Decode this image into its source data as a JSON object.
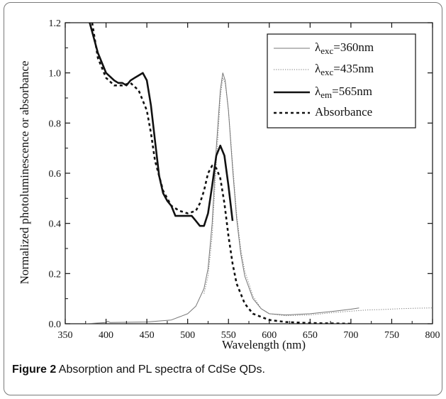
{
  "caption": {
    "label": "Figure 2",
    "text": "Absorption and PL spectra of CdSe QDs."
  },
  "chart_data": {
    "type": "line",
    "xlabel": "Wavelength (nm)",
    "ylabel": "Normalized photoluminescence or absorbance",
    "xlim": [
      350,
      800
    ],
    "ylim": [
      0,
      1.2
    ],
    "xticks": [
      350,
      400,
      450,
      500,
      550,
      600,
      650,
      700,
      750,
      800
    ],
    "yticks": [
      0.0,
      0.2,
      0.4,
      0.6,
      0.8,
      1.0,
      1.2
    ],
    "legend_position": "top-right",
    "series": [
      {
        "name": "λexc=360nm",
        "legend": {
          "symbol": "λ",
          "sub": "exc",
          "rest": "=360nm"
        },
        "style": "thin-solid",
        "color": "#777777",
        "x": [
          375,
          400,
          402,
          405,
          450,
          480,
          500,
          510,
          520,
          525,
          530,
          535,
          540,
          543,
          546,
          550,
          555,
          560,
          565,
          570,
          580,
          590,
          600,
          620,
          650,
          680,
          700,
          710
        ],
        "y": [
          0.0,
          0.005,
          0.01,
          0.005,
          0.007,
          0.015,
          0.04,
          0.07,
          0.14,
          0.22,
          0.4,
          0.7,
          0.93,
          1.0,
          0.97,
          0.85,
          0.62,
          0.42,
          0.28,
          0.19,
          0.1,
          0.06,
          0.04,
          0.035,
          0.04,
          0.05,
          0.058,
          0.063
        ]
      },
      {
        "name": "λexc=435nm",
        "legend": {
          "symbol": "λ",
          "sub": "exc",
          "rest": "=435nm"
        },
        "style": "dotted",
        "color": "#777777",
        "x": [
          520,
          525,
          530,
          535,
          540,
          543,
          546,
          550,
          555,
          560,
          565,
          570,
          580,
          590,
          600,
          620,
          650,
          680,
          700,
          720,
          740,
          760,
          780,
          800
        ],
        "y": [
          0.12,
          0.19,
          0.35,
          0.64,
          0.9,
          0.98,
          0.96,
          0.85,
          0.64,
          0.44,
          0.3,
          0.21,
          0.11,
          0.06,
          0.04,
          0.032,
          0.035,
          0.045,
          0.05,
          0.055,
          0.057,
          0.06,
          0.062,
          0.063
        ]
      },
      {
        "name": "λem=565nm",
        "legend": {
          "symbol": "λ",
          "sub": "em",
          "rest": "=565nm"
        },
        "style": "thick-solid",
        "color": "#111111",
        "x": [
          374,
          380,
          390,
          400,
          410,
          415,
          420,
          425,
          430,
          435,
          440,
          445,
          450,
          455,
          460,
          465,
          470,
          475,
          480,
          485,
          490,
          495,
          500,
          505,
          510,
          515,
          520,
          525,
          530,
          535,
          540,
          545,
          550,
          555
        ],
        "y": [
          1.4,
          1.2,
          1.08,
          1.0,
          0.97,
          0.96,
          0.96,
          0.95,
          0.97,
          0.98,
          0.99,
          1.0,
          0.97,
          0.87,
          0.73,
          0.59,
          0.52,
          0.49,
          0.47,
          0.43,
          0.43,
          0.43,
          0.43,
          0.43,
          0.41,
          0.39,
          0.39,
          0.44,
          0.55,
          0.67,
          0.71,
          0.67,
          0.55,
          0.41
        ]
      },
      {
        "name": "Absorbance",
        "legend": {
          "symbol": "",
          "sub": "",
          "rest": "Absorbance"
        },
        "style": "dashed",
        "color": "#111111",
        "x": [
          383,
          390,
          400,
          410,
          420,
          430,
          440,
          450,
          455,
          460,
          470,
          480,
          490,
          500,
          510,
          515,
          520,
          525,
          530,
          535,
          540,
          545,
          550,
          555,
          560,
          570,
          580,
          600,
          620,
          640,
          660,
          680,
          700
        ],
        "y": [
          1.2,
          1.06,
          0.98,
          0.95,
          0.95,
          0.96,
          0.93,
          0.85,
          0.76,
          0.65,
          0.53,
          0.47,
          0.45,
          0.44,
          0.45,
          0.48,
          0.53,
          0.6,
          0.63,
          0.62,
          0.58,
          0.48,
          0.35,
          0.24,
          0.16,
          0.08,
          0.04,
          0.015,
          0.007,
          0.004,
          0.002,
          0.001,
          0.0
        ]
      }
    ]
  }
}
